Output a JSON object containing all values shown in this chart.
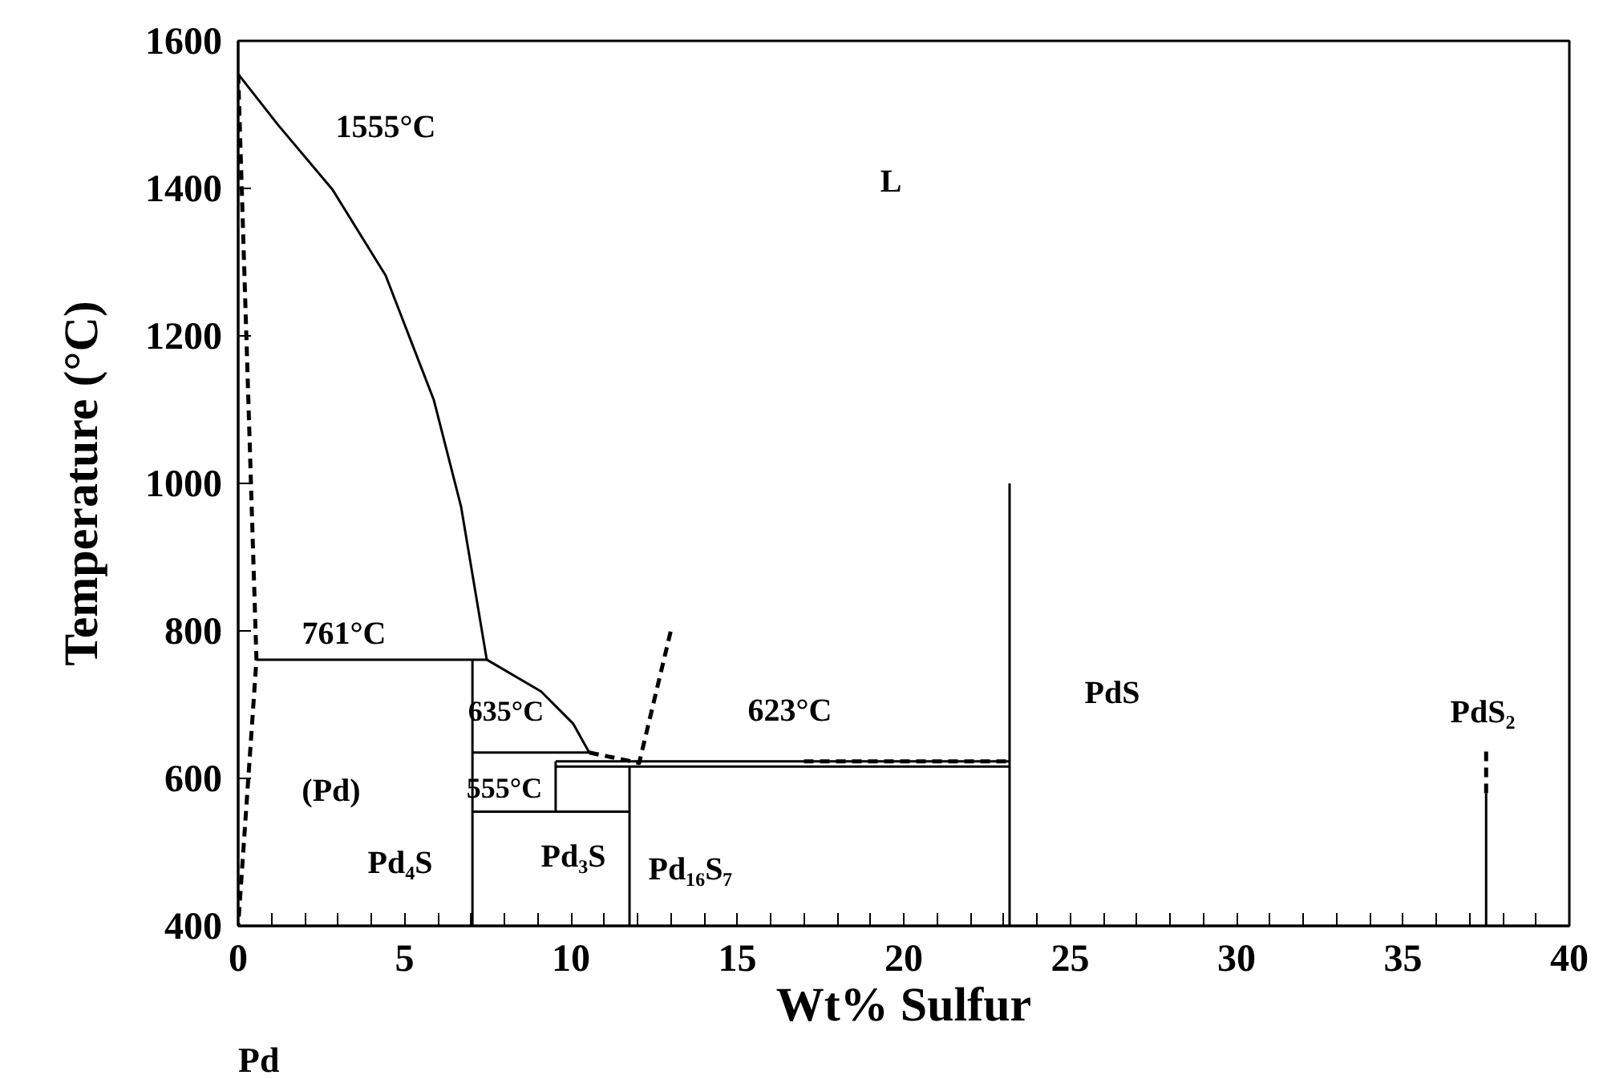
{
  "chart_data": {
    "type": "line",
    "xlabel": "Wt% Sulfur",
    "ylabel": "Temperature (°C)",
    "xlim": [
      0,
      40
    ],
    "ylim": [
      400,
      1600
    ],
    "xticks": [
      0,
      {
        "value": 1,
        "label": null
      },
      {
        "value": 2,
        "label": null
      },
      {
        "value": 3,
        "label": null
      },
      {
        "value": 4,
        "label": null
      },
      5,
      {
        "value": 6,
        "label": null
      },
      {
        "value": 7,
        "label": null
      },
      {
        "value": 8,
        "label": null
      },
      {
        "value": 9,
        "label": null
      },
      10,
      {
        "value": 11,
        "label": null
      },
      {
        "value": 12,
        "label": null
      },
      {
        "value": 13,
        "label": null
      },
      {
        "value": 14,
        "label": null
      },
      15,
      {
        "value": 16,
        "label": null
      },
      {
        "value": 17,
        "label": null
      },
      {
        "value": 18,
        "label": null
      },
      {
        "value": 19,
        "label": null
      },
      20,
      {
        "value": 21,
        "label": null
      },
      {
        "value": 22,
        "label": null
      },
      {
        "value": 23,
        "label": null
      },
      {
        "value": 24,
        "label": null
      },
      25,
      {
        "value": 26,
        "label": null
      },
      {
        "value": 27,
        "label": null
      },
      {
        "value": 28,
        "label": null
      },
      {
        "value": 29,
        "label": null
      },
      30,
      {
        "value": 31,
        "label": null
      },
      {
        "value": 32,
        "label": null
      },
      {
        "value": 33,
        "label": null
      },
      {
        "value": 34,
        "label": null
      },
      35,
      {
        "value": 36,
        "label": null
      },
      {
        "value": 37,
        "label": null
      },
      {
        "value": 38,
        "label": null
      },
      {
        "value": 39,
        "label": null
      },
      40
    ],
    "yticks": [
      400,
      600,
      800,
      1000,
      1200,
      1400,
      1600
    ],
    "grid": false,
    "marker": "none",
    "series": [
      {
        "color": "#000000",
        "line_style": "solid",
        "x": [
          0,
          1.2,
          2.84,
          4.43,
          5.88,
          6.7,
          7.47
        ],
        "values": [
          1555,
          1486,
          1398,
          1282,
          1113,
          968,
          761
        ]
      },
      {
        "color": "#000000",
        "line_style": "dashed",
        "x": [
          0,
          0.55,
          0
        ],
        "values": [
          1555,
          761,
          400
        ]
      },
      {
        "color": "#000000",
        "line_style": "solid",
        "x": [
          0.55,
          7.47
        ],
        "values": [
          761,
          761
        ]
      },
      {
        "color": "#000000",
        "line_style": "solid",
        "x": [
          7.04,
          7.04
        ],
        "values": [
          400,
          761
        ]
      },
      {
        "color": "#000000",
        "line_style": "solid",
        "x": [
          7.47,
          9.1,
          10.07,
          10.55
        ],
        "values": [
          761,
          718,
          674,
          635
        ]
      },
      {
        "color": "#000000",
        "line_style": "solid",
        "x": [
          7.04,
          10.55
        ],
        "values": [
          635,
          635
        ]
      },
      {
        "color": "#000000",
        "line_style": "dashed",
        "x": [
          10.55,
          12.05,
          13.0
        ],
        "values": [
          635,
          621,
          800
        ]
      },
      {
        "color": "#000000",
        "line_style": "solid",
        "x": [
          9.54,
          23.18
        ],
        "values": [
          623,
          623
        ]
      },
      {
        "color": "#000000",
        "line_style": "solid",
        "x": [
          9.54,
          23.18
        ],
        "values": [
          616,
          616
        ]
      },
      {
        "color": "#000000",
        "line_style": "dashed",
        "x": [
          17,
          23.18
        ],
        "values": [
          623,
          623
        ]
      },
      {
        "color": "#000000",
        "line_style": "solid",
        "x": [
          7.04,
          11.76
        ],
        "values": [
          555,
          555
        ]
      },
      {
        "color": "#000000",
        "line_style": "solid",
        "x": [
          9.54,
          9.54
        ],
        "values": [
          555,
          623
        ]
      },
      {
        "color": "#000000",
        "line_style": "solid",
        "x": [
          11.76,
          11.76
        ],
        "values": [
          400,
          616
        ]
      },
      {
        "color": "#000000",
        "line_style": "solid",
        "x": [
          23.18,
          23.18
        ],
        "values": [
          400,
          1000
        ]
      },
      {
        "color": "#000000",
        "line_style": "solid",
        "x": [
          37.5,
          37.5
        ],
        "values": [
          400,
          580
        ]
      },
      {
        "color": "#000000",
        "line_style": "dashed",
        "x": [
          37.5,
          37.5
        ],
        "values": [
          580,
          640
        ]
      }
    ],
    "annotations": [
      "1555°C",
      "L",
      "761°C",
      "635°C",
      "623°C",
      "555°C",
      "(Pd)",
      "Pd₄S",
      "Pd₃S",
      "Pd₁₆S₇",
      "PdS",
      "PdS₂",
      "Pd"
    ]
  }
}
